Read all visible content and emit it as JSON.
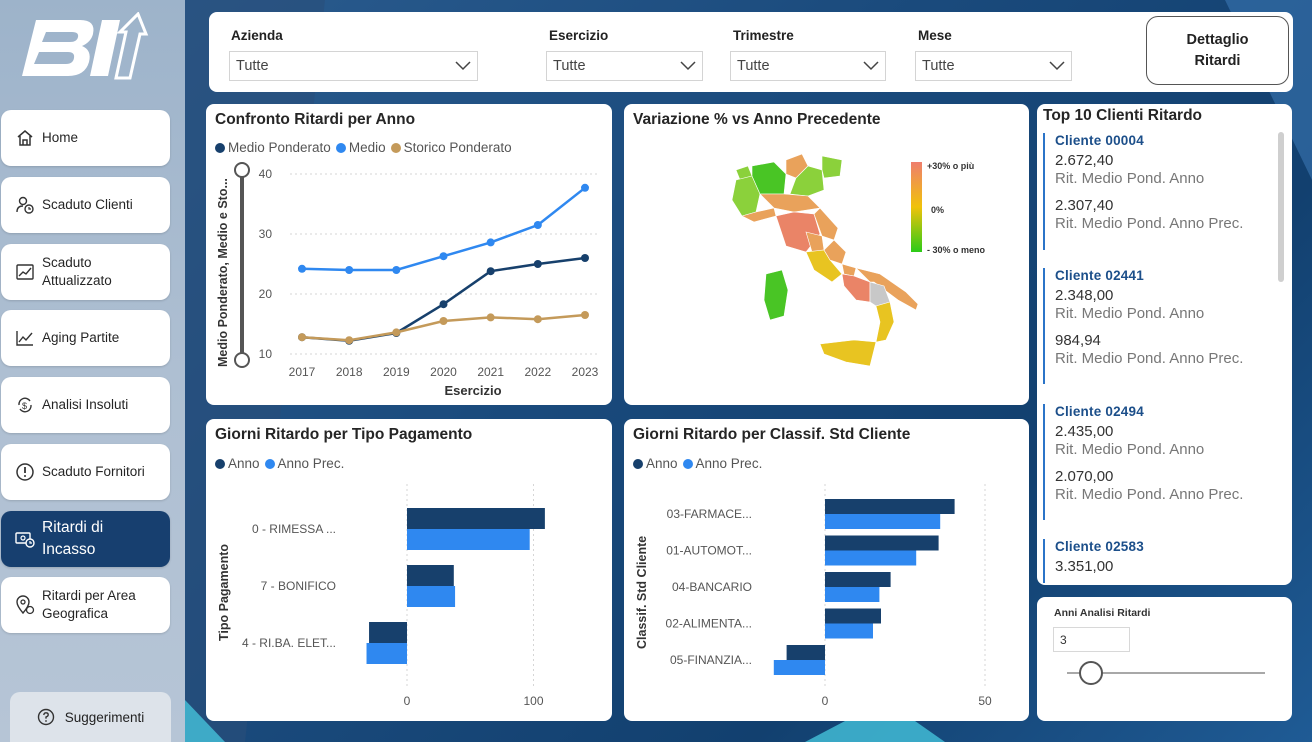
{
  "sidebar": {
    "items": [
      {
        "label": "Home"
      },
      {
        "label": "Scaduto Clienti"
      },
      {
        "label": "Scaduto Attualizzato"
      },
      {
        "label": "Aging Partite"
      },
      {
        "label": "Analisi Insoluti"
      },
      {
        "label": "Scaduto Fornitori"
      },
      {
        "label": "Ritardi di Incasso"
      },
      {
        "label": "Ritardi per Area Geografica"
      }
    ],
    "suggest_label": "Suggerimenti"
  },
  "filters": {
    "azienda": {
      "label": "Azienda",
      "value": "Tutte"
    },
    "esercizio": {
      "label": "Esercizio",
      "value": "Tutte"
    },
    "trimestre": {
      "label": "Trimestre",
      "value": "Tutte"
    },
    "mese": {
      "label": "Mese",
      "value": "Tutte"
    },
    "detail_button": "Dettaglio Ritardi"
  },
  "line_chart_title": "Confronto Ritardi per Anno",
  "map_title": "Variazione % vs Anno Precedente",
  "map_legend": {
    "high": "+30% o più",
    "mid": "0%",
    "low": "- 30% o meno"
  },
  "bar1_title": "Giorni Ritardo per Tipo Pagamento",
  "bar2_title": "Giorni Ritardo per Classif. Std Cliente",
  "top10": {
    "title": "Top 10 Clienti Ritardo",
    "clients": [
      {
        "name": "Cliente 00004",
        "v1": "2.672,40",
        "l1": "Rit. Medio Pond. Anno",
        "v2": "2.307,40",
        "l2": "Rit. Medio Pond. Anno Prec."
      },
      {
        "name": "Cliente 02441",
        "v1": "2.348,00",
        "l1": "Rit. Medio Pond. Anno",
        "v2": "984,94",
        "l2": "Rit. Medio Pond. Anno Prec."
      },
      {
        "name": "Cliente 02494",
        "v1": "2.435,00",
        "l1": "Rit. Medio Pond. Anno",
        "v2": "2.070,00",
        "l2": "Rit. Medio Pond. Anno Prec."
      },
      {
        "name": "Cliente 02583",
        "v1": "3.351,00"
      }
    ]
  },
  "slicer": {
    "title": "Anni Analisi Ritardi",
    "value": "3",
    "level": 0.12
  },
  "colors": {
    "navy": "#17406c",
    "blue": "#2f88f0",
    "gold": "#c49a5a",
    "sidebar_active": "#173f6f"
  },
  "chart_data": [
    {
      "type": "line",
      "title": "Confronto Ritardi per Anno",
      "x": [
        "2017",
        "2018",
        "2019",
        "2020",
        "2021",
        "2022",
        "2023"
      ],
      "xlabel": "Esercizio",
      "ylabel": "Medio Ponderato, Medio e Sto...",
      "ylim": [
        10,
        40
      ],
      "yticks": [
        10,
        20,
        30,
        40
      ],
      "series": [
        {
          "name": "Medio Ponderato",
          "color": "#17406c",
          "values": [
            12.8,
            12.2,
            13.5,
            18.3,
            23.8,
            25.0,
            26.0
          ]
        },
        {
          "name": "Medio",
          "color": "#2f88f0",
          "values": [
            24.2,
            24.0,
            24.0,
            26.3,
            28.6,
            31.5,
            37.7
          ]
        },
        {
          "name": "Storico Ponderato",
          "color": "#c49a5a",
          "values": [
            12.8,
            12.3,
            13.6,
            15.5,
            16.1,
            15.8,
            16.5
          ]
        }
      ]
    },
    {
      "type": "bar",
      "title": "Giorni Ritardo per Tipo Pagamento",
      "ylabel": "Tipo Pagamento",
      "categories": [
        "0 - RIMESSA ...",
        "7 - BONIFICO",
        "4 - RI.BA. ELET..."
      ],
      "xticks": [
        0,
        100
      ],
      "series": [
        {
          "name": "Anno",
          "color": "#17406c",
          "values": [
            109,
            37,
            -30
          ]
        },
        {
          "name": "Anno Prec.",
          "color": "#2f88f0",
          "values": [
            97,
            38,
            -32
          ]
        }
      ]
    },
    {
      "type": "bar",
      "title": "Giorni Ritardo per Classif. Std Cliente",
      "ylabel": "Classif. Std Cliente",
      "categories": [
        "03-FARMACE...",
        "01-AUTOMOT...",
        "04-BANCARIO",
        "02-ALIMENTA...",
        "05-FINANZIA..."
      ],
      "xticks": [
        0,
        50
      ],
      "series": [
        {
          "name": "Anno",
          "color": "#17406c",
          "values": [
            40.5,
            35.5,
            20.5,
            17.5,
            -12
          ]
        },
        {
          "name": "Anno Prec.",
          "color": "#2f88f0",
          "values": [
            36,
            28.5,
            17,
            15,
            -16
          ]
        }
      ]
    }
  ]
}
